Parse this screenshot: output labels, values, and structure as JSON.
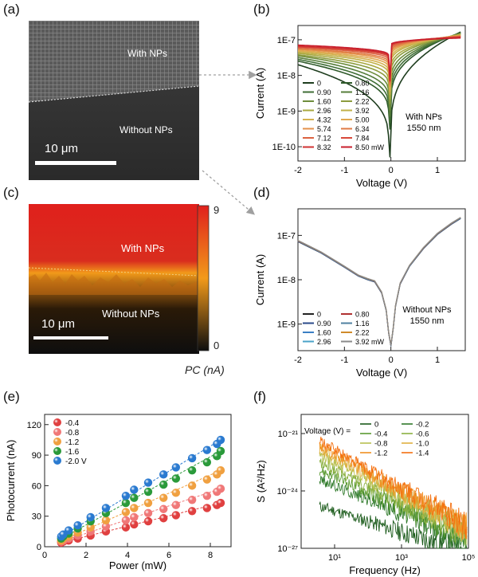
{
  "panels": {
    "a": {
      "letter": "(a)",
      "label_top": "With NPs",
      "label_bottom": "Without NPs",
      "scale": "10 μm"
    },
    "b": {
      "letter": "(b)"
    },
    "c": {
      "letter": "(c)",
      "label_top": "With NPs",
      "label_bottom": "Without NPs",
      "scale": "10 μm",
      "colorbar_max": "9",
      "colorbar_min": "0",
      "colorbar_label": "PC (nA)",
      "colors": {
        "high": "#e0201c",
        "mid": "#f29a1a",
        "low": "#0e0e0e"
      }
    },
    "d": {
      "letter": "(d)"
    },
    "e": {
      "letter": "(e)"
    },
    "f": {
      "letter": "(f)"
    }
  },
  "chart_data": [
    {
      "panel": "b",
      "type": "line",
      "xlabel": "Voltage (V)",
      "ylabel": "Current (A)",
      "xlim": [
        -2,
        1.6
      ],
      "ylim_log10": [
        -10.4,
        -6.6
      ],
      "log_y": true,
      "x_ticks": [
        "-2",
        "-1",
        "0",
        "1"
      ],
      "y_ticks": [
        "1E-10",
        "1E-9",
        "1E-8",
        "1E-7"
      ],
      "annotation": [
        "With NPs",
        "1550 nm"
      ],
      "legend_col1": [
        "0",
        "0.90",
        "1.60",
        "2.96",
        "4.32",
        "5.74",
        "7.12",
        "8.32"
      ],
      "legend_col2": [
        "0.80",
        "1.16",
        "2.22",
        "3.92",
        "5.00",
        "6.34",
        "7.84",
        "8.50 mW"
      ],
      "series_powers_mW": [
        0,
        0.8,
        0.9,
        1.16,
        1.6,
        2.22,
        2.96,
        3.92,
        4.32,
        5.0,
        5.74,
        6.34,
        7.12,
        7.84,
        8.32,
        8.5
      ],
      "series_colors": [
        "#1e3d1e",
        "#2f5a2a",
        "#3f6e35",
        "#567d3a",
        "#6e8d3c",
        "#8c9c3e",
        "#a8a840",
        "#c0b048",
        "#d4b250",
        "#e0a850",
        "#e4924a",
        "#e07a44",
        "#dc6240",
        "#d8483a",
        "#d03232",
        "#c81e2c"
      ],
      "curve_min_log10": [
        -9.9,
        -9.1,
        -8.9,
        -8.7,
        -8.5,
        -8.3,
        -8.15,
        -8.0,
        -7.9,
        -7.8,
        -7.72,
        -7.65,
        -7.58,
        -7.52,
        -7.48,
        -7.45
      ],
      "curve_left_log10": [
        -7.7,
        -7.6,
        -7.55,
        -7.5,
        -7.45,
        -7.42,
        -7.38,
        -7.35,
        -7.32,
        -7.3,
        -7.27,
        -7.25,
        -7.22,
        -7.2,
        -7.18,
        -7.15
      ],
      "curve_right_log10": [
        -6.78,
        -6.8,
        -6.81,
        -6.82,
        -6.83,
        -6.84,
        -6.85,
        -6.86,
        -6.87,
        -6.88,
        -6.89,
        -6.9,
        -6.91,
        -6.92,
        -6.93,
        -6.95
      ]
    },
    {
      "panel": "d",
      "type": "line",
      "xlabel": "Voltage (V)",
      "ylabel": "Current (A)",
      "xlim": [
        -2,
        1.6
      ],
      "ylim_log10": [
        -9.6,
        -6.4
      ],
      "log_y": true,
      "x_ticks": [
        "-2",
        "-1",
        "0",
        "1"
      ],
      "y_ticks": [
        "1E-9",
        "1E-8",
        "1E-7"
      ],
      "annotation": [
        "Without NPs",
        "1550 nm"
      ],
      "legend_col1": [
        "0",
        "0.90",
        "1.60",
        "2.96"
      ],
      "legend_col2": [
        "0.80",
        "1.16",
        "2.22",
        "3.92 mW"
      ],
      "series_colors": [
        "#222222",
        "#2a4a8a",
        "#3b7fc4",
        "#4aa3c8",
        "#b03030",
        "#4f80a0",
        "#d08a2a",
        "#8a8a8a"
      ],
      "curve_points": [
        [
          -2.0,
          -7.14
        ],
        [
          -1.5,
          -7.4
        ],
        [
          -1.0,
          -7.72
        ],
        [
          -0.7,
          -7.92
        ],
        [
          -0.5,
          -8.0
        ],
        [
          -0.35,
          -8.05
        ],
        [
          -0.2,
          -8.3
        ],
        [
          -0.1,
          -8.7
        ],
        [
          -0.05,
          -9.2
        ],
        [
          0.0,
          -9.5
        ],
        [
          0.05,
          -9.1
        ],
        [
          0.1,
          -8.6
        ],
        [
          0.2,
          -8.1
        ],
        [
          0.4,
          -7.7
        ],
        [
          0.7,
          -7.3
        ],
        [
          1.0,
          -6.98
        ],
        [
          1.3,
          -6.75
        ],
        [
          1.5,
          -6.62
        ]
      ]
    },
    {
      "panel": "e",
      "type": "scatter",
      "xlabel": "Power (mW)",
      "ylabel": "Photocurrent (nA)",
      "xlim": [
        0,
        9
      ],
      "ylim": [
        0,
        130
      ],
      "x_ticks": [
        0,
        2,
        4,
        6,
        8
      ],
      "y_ticks": [
        0,
        30,
        60,
        90,
        120
      ],
      "x": [
        0.8,
        0.9,
        1.16,
        1.6,
        2.22,
        2.96,
        3.92,
        4.32,
        5.0,
        5.74,
        6.34,
        7.12,
        7.84,
        8.32,
        8.5
      ],
      "series": [
        {
          "name": "-0.4",
          "color": "#e04040",
          "values": [
            4,
            5,
            6,
            8,
            11,
            15,
            19,
            22,
            25,
            28,
            31,
            35,
            38,
            41,
            43
          ]
        },
        {
          "name": "-0.8",
          "color": "#f07878",
          "values": [
            5,
            6,
            8,
            11,
            15,
            20,
            26,
            29,
            33,
            37,
            41,
            46,
            50,
            54,
            57
          ]
        },
        {
          "name": "-1.2",
          "color": "#f0a040",
          "values": [
            6,
            8,
            10,
            14,
            19,
            26,
            34,
            38,
            43,
            48,
            53,
            60,
            66,
            71,
            75
          ]
        },
        {
          "name": "-1.6",
          "color": "#2a9a3a",
          "values": [
            8,
            10,
            13,
            18,
            25,
            33,
            43,
            48,
            54,
            61,
            67,
            75,
            83,
            89,
            94
          ]
        },
        {
          "name": "-2.0 V",
          "color": "#2a7ad0",
          "values": [
            10,
            12,
            16,
            21,
            29,
            38,
            50,
            56,
            63,
            71,
            78,
            87,
            95,
            101,
            105
          ]
        }
      ]
    },
    {
      "panel": "f",
      "type": "line",
      "xlabel": "Frequency (Hz)",
      "ylabel": "S (A²/Hz)",
      "log_x": true,
      "log_y": true,
      "xlim_log10": [
        0,
        5
      ],
      "ylim_log10": [
        -27,
        -20
      ],
      "x_ticks": [
        "10¹",
        "10³",
        "10⁵"
      ],
      "y_ticks": [
        "10⁻²¹",
        "10⁻²⁴",
        "10⁻²⁷"
      ],
      "legend_title": "Voltage (V) =",
      "legend_col1": [
        "0",
        "-0.4",
        "-0.8",
        "-1.2"
      ],
      "legend_col2": [
        "-0.2",
        "-0.6",
        "-1.0",
        "-1.4"
      ],
      "series_voltages": [
        0,
        -0.2,
        -0.4,
        -0.6,
        -0.8,
        -1.0,
        -1.2,
        -1.4
      ],
      "series_colors": [
        "#1a5a1a",
        "#2f7a2a",
        "#5a9a30",
        "#8ab040",
        "#b8c050",
        "#e0b040",
        "#f09020",
        "#f47010"
      ],
      "series_level_log10": [
        -24.8,
        -23.4,
        -22.9,
        -22.5,
        -22.1,
        -21.8,
        -21.6,
        -21.4
      ],
      "series_slope": [
        -0.55,
        -0.72,
        -0.8,
        -0.85,
        -0.9,
        -0.95,
        -0.98,
        -1.0
      ]
    }
  ]
}
